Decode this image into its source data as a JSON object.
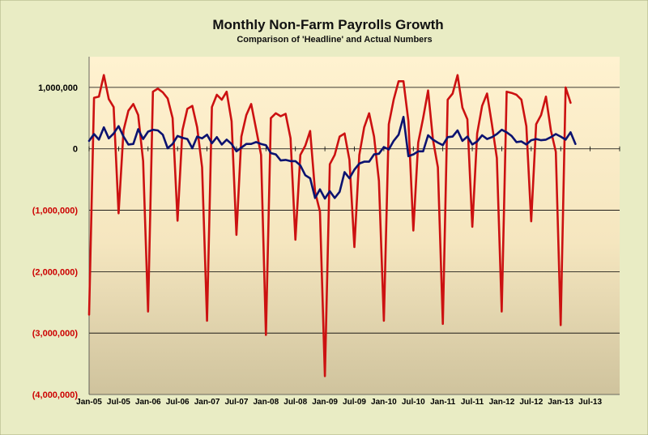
{
  "chart_data": {
    "type": "line",
    "title": "Monthly Non-Farm Payrolls Growth",
    "subtitle": "Comparison of 'Headline' and Actual Numbers",
    "xlabel": "",
    "ylabel": "",
    "ylim": [
      -4000000,
      1500000
    ],
    "y_ticks": [
      {
        "value": 1000000,
        "label": "1,000,000"
      },
      {
        "value": 0,
        "label": "0"
      },
      {
        "value": -1000000,
        "label": "(1,000,000)"
      },
      {
        "value": -2000000,
        "label": "(2,000,000)"
      },
      {
        "value": -3000000,
        "label": "(3,000,000)"
      },
      {
        "value": -4000000,
        "label": "(4,000,000)"
      }
    ],
    "x_tick_labels": [
      "Jan-05",
      "Jul-05",
      "Jan-06",
      "Jul-06",
      "Jan-07",
      "Jul-07",
      "Jan-08",
      "Jul-08",
      "Jan-09",
      "Jul-09",
      "Jan-10",
      "Jul-10",
      "Jan-11",
      "Jul-11",
      "Jan-12",
      "Jul-12",
      "Jan-13",
      "Jul-13"
    ],
    "x_range_months": [
      "Jan-05",
      "Dec-13"
    ],
    "grid": true,
    "legend": "none",
    "colors": {
      "actual_series": "#cc1111",
      "headline_series": "#0b1270",
      "negative_tick_labels": "#cc0000",
      "positive_tick_labels": "#000000",
      "plot_gradient_top": "#fff0cc",
      "plot_gradient_bottom": "#d2c6a2",
      "background": "#e9ecc4"
    },
    "series": [
      {
        "color": "#cc1111",
        "values": [
          -2700000,
          830000,
          850000,
          1200000,
          810000,
          680000,
          -1050000,
          300000,
          620000,
          730000,
          550000,
          -200000,
          -2650000,
          930000,
          980000,
          920000,
          820000,
          500000,
          -1170000,
          300000,
          650000,
          700000,
          350000,
          -300000,
          -2800000,
          680000,
          880000,
          800000,
          930000,
          450000,
          -1400000,
          200000,
          550000,
          730000,
          320000,
          -100000,
          -3030000,
          500000,
          580000,
          530000,
          570000,
          170000,
          -1480000,
          -100000,
          50000,
          290000,
          -700000,
          -1020000,
          -3700000,
          -250000,
          -100000,
          200000,
          250000,
          -180000,
          -1600000,
          -100000,
          350000,
          580000,
          200000,
          -520000,
          -2800000,
          400000,
          800000,
          1100000,
          1100000,
          450000,
          -1330000,
          100000,
          500000,
          950000,
          150000,
          -300000,
          -2850000,
          800000,
          900000,
          1200000,
          670000,
          480000,
          -1270000,
          250000,
          700000,
          900000,
          400000,
          -150000,
          -2650000,
          930000,
          910000,
          880000,
          800000,
          370000,
          -1180000,
          400000,
          550000,
          850000,
          300000,
          -50000,
          -2870000,
          1000000,
          750000
        ]
      },
      {
        "color": "#0b1270",
        "values": [
          130000,
          240000,
          150000,
          350000,
          170000,
          250000,
          370000,
          200000,
          70000,
          80000,
          320000,
          160000,
          280000,
          310000,
          300000,
          230000,
          10000,
          80000,
          210000,
          180000,
          160000,
          10000,
          200000,
          170000,
          230000,
          90000,
          190000,
          70000,
          150000,
          80000,
          -40000,
          20000,
          80000,
          80000,
          110000,
          80000,
          60000,
          -70000,
          -90000,
          -190000,
          -180000,
          -200000,
          -200000,
          -270000,
          -430000,
          -480000,
          -800000,
          -660000,
          -810000,
          -690000,
          -800000,
          -700000,
          -380000,
          -480000,
          -340000,
          -240000,
          -210000,
          -210000,
          -90000,
          -80000,
          30000,
          -10000,
          130000,
          230000,
          520000,
          -120000,
          -90000,
          -40000,
          -40000,
          220000,
          150000,
          100000,
          60000,
          190000,
          200000,
          300000,
          130000,
          200000,
          70000,
          120000,
          220000,
          160000,
          190000,
          240000,
          310000,
          270000,
          210000,
          110000,
          120000,
          70000,
          140000,
          160000,
          140000,
          150000,
          190000,
          240000,
          200000,
          150000,
          270000,
          80000
        ]
      }
    ]
  }
}
